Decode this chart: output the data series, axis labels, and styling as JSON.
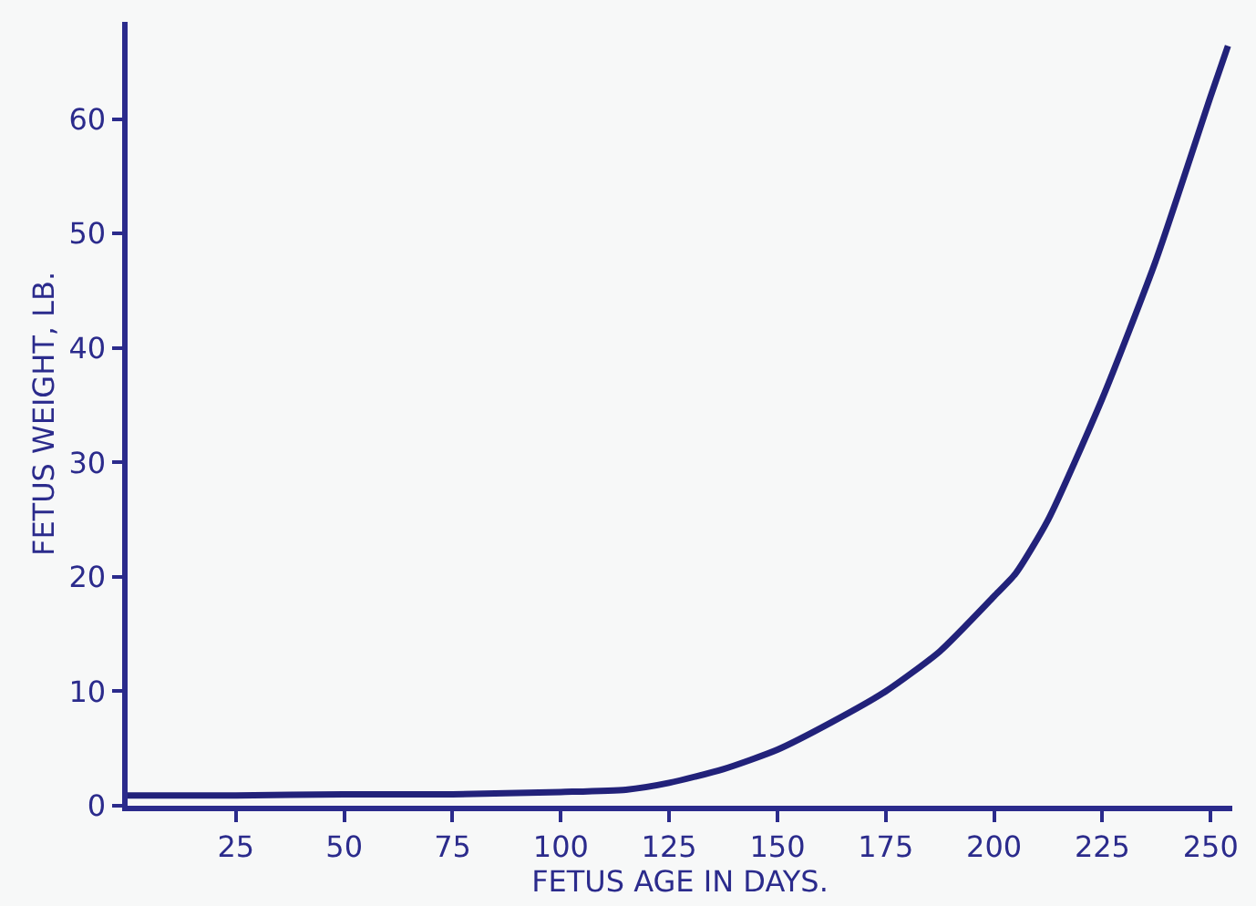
{
  "chart_data": {
    "type": "line",
    "xlabel": "FETUS AGE IN DAYS.",
    "ylabel": "FETUS WEIGHT, LB.",
    "x": [
      0,
      25,
      50,
      75,
      100,
      115,
      125,
      137.5,
      150,
      162.5,
      175,
      187.5,
      200,
      205,
      212.5,
      225,
      237.5,
      250,
      254
    ],
    "series": [
      {
        "color": "#22227a",
        "values": [
          0.9,
          0.9,
          1.0,
          1.0,
          1.2,
          1.4,
          2.0,
          3.2,
          4.9,
          7.3,
          10.0,
          13.5,
          18.3,
          20.3,
          25,
          35.6,
          47.8,
          62,
          66.4
        ]
      }
    ],
    "xlim": [
      0,
      255
    ],
    "ylim": [
      0,
      68.5
    ],
    "xticks": [
      25,
      50,
      75,
      100,
      125,
      150,
      175,
      200,
      225,
      250
    ],
    "yticks": [
      0,
      10,
      20,
      30,
      40,
      50,
      60
    ],
    "grid": false,
    "legend": false,
    "marker": "none",
    "line_style": "solid"
  }
}
